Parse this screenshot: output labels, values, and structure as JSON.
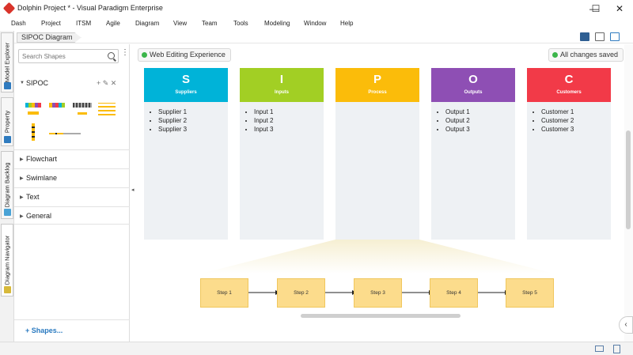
{
  "window": {
    "title": "Dolphin Project * - Visual Paradigm Enterprise",
    "minimize_glyph": "—",
    "maximize_glyph": "☐",
    "close_glyph": "✕"
  },
  "menu": [
    "Dash",
    "Project",
    "ITSM",
    "Agile",
    "Diagram",
    "View",
    "Team",
    "Tools",
    "Modeling",
    "Window",
    "Help"
  ],
  "breadcrumb": "SIPOC Diagram",
  "left_tabs": [
    "Model Explorer",
    "Property",
    "Diagram Backlog",
    "Diagram Navigator"
  ],
  "panel": {
    "search_placeholder": "Search Shapes",
    "more_glyph": "⋮",
    "sections": [
      {
        "label": "SIPOC",
        "expanded": true
      },
      {
        "label": "Flowchart",
        "expanded": false
      },
      {
        "label": "Swimlane",
        "expanded": false
      },
      {
        "label": "Text",
        "expanded": false
      },
      {
        "label": "General",
        "expanded": false
      }
    ],
    "section_actions": "+ ✎ ✕",
    "expanded_arrow": "▼",
    "collapsed_arrow": "▶",
    "shapes_link": "+ Shapes..."
  },
  "canvas": {
    "badge_left": "Web Editing Experience",
    "badge_right": "All changes saved",
    "status_color": "#3bb54a",
    "columns": [
      {
        "letter": "S",
        "name": "Suppliers",
        "color": "#00b3d8",
        "items": [
          "Supplier 1",
          "Supplier 2",
          "Supplier 3"
        ]
      },
      {
        "letter": "I",
        "name": "Inputs",
        "color": "#a2cf24",
        "items": [
          "Input 1",
          "Input 2",
          "Input 3"
        ]
      },
      {
        "letter": "P",
        "name": "Process",
        "color": "#fbbc0a",
        "items": []
      },
      {
        "letter": "O",
        "name": "Outputs",
        "color": "#8e4fb4",
        "items": [
          "Output 1",
          "Output 2",
          "Output 3"
        ]
      },
      {
        "letter": "C",
        "name": "Customers",
        "color": "#f23a48",
        "items": [
          "Customer 1",
          "Customer 2",
          "Customer 3"
        ]
      }
    ],
    "steps": [
      "Step 1",
      "Step 2",
      "Step 3",
      "Step 4",
      "Step 5"
    ]
  },
  "collapse_glyph": "‹"
}
